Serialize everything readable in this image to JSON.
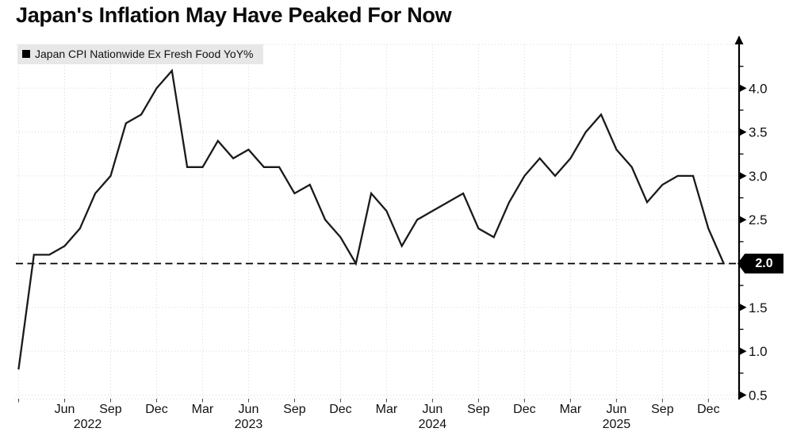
{
  "title": "Japan's Inflation May Have Peaked For Now",
  "legend": {
    "label": "Japan CPI Nationwide Ex Fresh Food YoY%"
  },
  "target_line": {
    "value": 2.0,
    "label": "2.0",
    "style": "dashed"
  },
  "colors": {
    "line": "#1a1a1a",
    "grid": "#d8d8d8",
    "axis": "#000000",
    "text": "#111111",
    "background": "#ffffff",
    "legend_bg": "#e7e7e7",
    "flag_bg": "#000000",
    "flag_text": "#ffffff"
  },
  "chart_data": {
    "type": "line",
    "title": "Japan's Inflation May Have Peaked For Now",
    "grid": true,
    "legend_position": "top-left",
    "y_axis_side": "right",
    "ylim": [
      0.45,
      4.55
    ],
    "y_ticks": [
      0.5,
      1.0,
      1.5,
      2.0,
      2.5,
      3.0,
      3.5,
      4.0
    ],
    "y_tick_labels": [
      "0.5",
      "1.0",
      "1.5",
      "2.0",
      "2.5",
      "3.0",
      "3.5",
      "4.0"
    ],
    "y_minor_ticks": [
      0.75,
      1.25,
      1.75,
      2.25,
      2.75,
      3.25,
      3.75,
      4.25
    ],
    "reference_line": {
      "value": 2.0,
      "label": "2.0"
    },
    "x": [
      "2022-03",
      "2022-04",
      "2022-05",
      "2022-06",
      "2022-07",
      "2022-08",
      "2022-09",
      "2022-10",
      "2022-11",
      "2022-12",
      "2023-01",
      "2023-02",
      "2023-03",
      "2023-04",
      "2023-05",
      "2023-06",
      "2023-07",
      "2023-08",
      "2023-09",
      "2023-10",
      "2023-11",
      "2023-12",
      "2024-01",
      "2024-02",
      "2024-03",
      "2024-04",
      "2024-05",
      "2024-06",
      "2024-07",
      "2024-08",
      "2024-09",
      "2024-10",
      "2024-11",
      "2024-12",
      "2025-01",
      "2025-02",
      "2025-03",
      "2025-04",
      "2025-05",
      "2025-06",
      "2025-07",
      "2025-08",
      "2025-09",
      "2025-10",
      "2025-11",
      "2025-12",
      "2026-01"
    ],
    "series": [
      {
        "name": "Japan CPI Nationwide Ex Fresh Food YoY%",
        "values": [
          0.8,
          2.1,
          2.1,
          2.2,
          2.4,
          2.8,
          3.0,
          3.6,
          3.7,
          4.0,
          4.2,
          3.1,
          3.1,
          3.4,
          3.2,
          3.3,
          3.1,
          3.1,
          2.8,
          2.9,
          2.5,
          2.3,
          2.0,
          2.8,
          2.6,
          2.2,
          2.5,
          2.6,
          2.7,
          2.8,
          2.4,
          2.3,
          2.7,
          3.0,
          3.2,
          3.0,
          3.2,
          3.5,
          3.7,
          3.3,
          3.1,
          2.7,
          2.9,
          3.0,
          3.0,
          2.4,
          2.0
        ]
      }
    ],
    "x_ticks": [
      {
        "label": "Jun",
        "month_index": 3
      },
      {
        "label": "Sep",
        "month_index": 6
      },
      {
        "label": "Dec",
        "month_index": 9
      },
      {
        "label": "Mar",
        "month_index": 12
      },
      {
        "label": "Jun",
        "month_index": 15
      },
      {
        "label": "Sep",
        "month_index": 18
      },
      {
        "label": "Dec",
        "month_index": 21
      },
      {
        "label": "Mar",
        "month_index": 24
      },
      {
        "label": "Jun",
        "month_index": 27
      },
      {
        "label": "Sep",
        "month_index": 30
      },
      {
        "label": "Dec",
        "month_index": 33
      },
      {
        "label": "Mar",
        "month_index": 36
      },
      {
        "label": "Jun",
        "month_index": 39
      },
      {
        "label": "Sep",
        "month_index": 42
      },
      {
        "label": "Dec",
        "month_index": 45
      }
    ],
    "year_labels": [
      {
        "label": "2022",
        "month_index": 4.5
      },
      {
        "label": "2023",
        "month_index": 15
      },
      {
        "label": "2024",
        "month_index": 27
      },
      {
        "label": "2025",
        "month_index": 39
      }
    ]
  }
}
